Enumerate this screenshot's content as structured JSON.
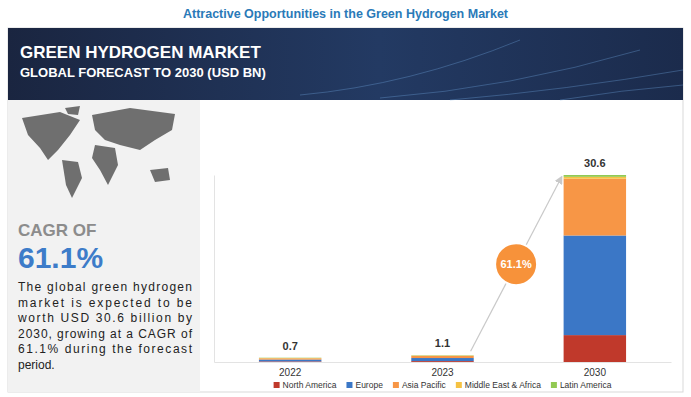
{
  "header": {
    "title": "Attractive Opportunities in the Green Hydrogen Market"
  },
  "panel": {
    "heading": "CAGR OF",
    "value": "61.1%",
    "description": [
      "The global green hydrogen",
      "market is expected to be",
      "worth USD 30.6 billion by",
      "2030, growing at a CAGR of",
      "61.1% during the forecast",
      "period."
    ]
  },
  "chart_data": {
    "type": "bar",
    "stacked": true,
    "title": "GREEN HYDROGEN MARKET",
    "subtitle": "GLOBAL FORECAST TO 2030 (USD BN)",
    "categories": [
      "2022",
      "2023",
      "2030"
    ],
    "series": [
      {
        "name": "North America",
        "color": "#c0392b",
        "values": [
          0.1,
          0.15,
          4.4
        ]
      },
      {
        "name": "Europe",
        "color": "#3b77c6",
        "values": [
          0.3,
          0.5,
          16.3
        ]
      },
      {
        "name": "Asia Pacific",
        "color": "#f79646",
        "values": [
          0.2,
          0.35,
          9.3
        ]
      },
      {
        "name": "Middle East & Africa",
        "color": "#f5c243",
        "values": [
          0.05,
          0.05,
          0.3
        ]
      },
      {
        "name": "Latin America",
        "color": "#92c953",
        "values": [
          0.05,
          0.05,
          0.3
        ]
      }
    ],
    "totals": [
      0.7,
      1.1,
      30.6
    ],
    "ylim": [
      0,
      30.6
    ],
    "yticks": [],
    "tick_labels": "x",
    "grid": false,
    "legend": "bottom",
    "annotations": [
      {
        "text": "61.1%"
      }
    ]
  }
}
